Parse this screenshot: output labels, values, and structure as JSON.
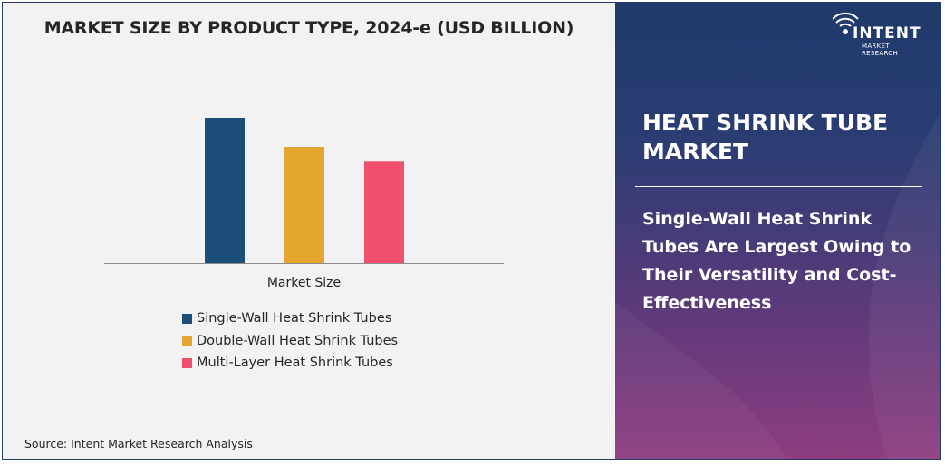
{
  "chart_data": {
    "type": "bar",
    "title": "MARKET SIZE BY PRODUCT TYPE, 2024-e (USD BILLION)",
    "categories": [
      "Market Size"
    ],
    "series": [
      {
        "name": "Single-Wall Heat Shrink Tubes",
        "values": [
          100
        ],
        "color": "#1b4f7a"
      },
      {
        "name": "Double-Wall Heat Shrink Tubes",
        "values": [
          80
        ],
        "color": "#e5a630"
      },
      {
        "name": "Multi-Layer Heat Shrink Tubes",
        "values": [
          70
        ],
        "color": "#f0506e"
      }
    ],
    "ylim": [
      0,
      100
    ],
    "grid": false,
    "legend": "bottom"
  },
  "source": "Source: Intent Market Research Analysis",
  "panel": {
    "title": "HEAT SHRINK TUBE MARKET",
    "headline": "Single-Wall Heat Shrink Tubes Are Largest Owing to Their Versatility and Cost-Effectiveness"
  },
  "logo": {
    "name": "INTENT",
    "tagline": "MARKET RESEARCH",
    "icon": "wifi-signal-icon"
  }
}
